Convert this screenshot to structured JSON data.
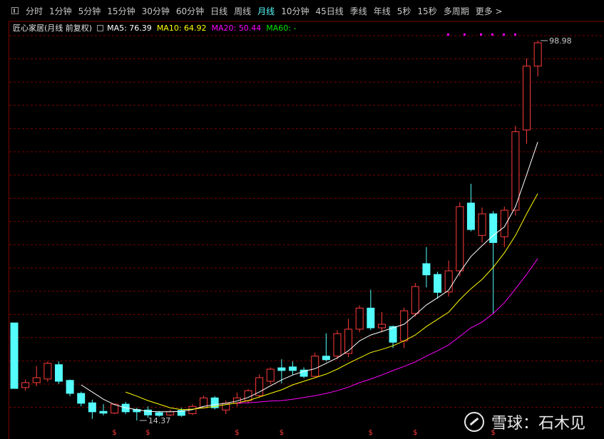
{
  "toolbar": {
    "items": [
      "分时",
      "1分钟",
      "5分钟",
      "15分钟",
      "30分钟",
      "60分钟",
      "日线",
      "周线",
      "月线",
      "10分钟",
      "45日线",
      "季线",
      "年线",
      "5秒",
      "15秒",
      "多周期",
      "更多 >"
    ],
    "active": 8
  },
  "chart_data": {
    "type": "candlestick",
    "title": "匠心家居(月线 前复权)",
    "ylim": [
      14.37,
      98.98
    ],
    "up_color": "#ff3b3b",
    "down_color": "#54fcfc",
    "open": [
      36.1,
      21.7,
      22.8,
      23.6,
      26.8,
      23.3,
      20.4,
      18.3,
      16.4,
      16.0,
      18.0,
      16.8,
      16.7,
      16.1,
      15.6,
      16.6,
      15.9,
      17.2,
      19.4,
      16.7,
      18.2,
      18.8,
      19.9,
      23.1,
      26.1,
      26.3,
      25.6,
      24.2,
      28.7,
      28.7,
      29.3,
      34.7,
      39.4,
      35.0,
      35.3,
      32.1,
      38.2,
      49.3,
      46.9,
      43.0,
      47.7,
      62.8,
      55.6,
      60.4,
      55.3,
      61.2,
      79.1,
      93.3
    ],
    "high": [
      36.1,
      23.5,
      26.5,
      27.5,
      27.5,
      23.5,
      20.8,
      19.0,
      18.0,
      18.2,
      18.5,
      17.2,
      17.5,
      16.5,
      16.8,
      17.2,
      18.0,
      19.9,
      19.8,
      18.8,
      20.6,
      21.4,
      24.6,
      26.2,
      28.0,
      27.5,
      26.2,
      29.5,
      33.8,
      34.5,
      37.0,
      40.0,
      43.5,
      38.5,
      35.5,
      39.5,
      45.0,
      53.0,
      47.5,
      50.0,
      63.0,
      67.1,
      61.8,
      61.0,
      62.0,
      80.0,
      95.0,
      98.98
    ],
    "low": [
      21.5,
      21.0,
      22.0,
      23.0,
      22.5,
      19.8,
      17.5,
      14.7,
      15.5,
      15.8,
      15.8,
      14.37,
      15.0,
      15.2,
      15.3,
      15.2,
      15.6,
      17.0,
      16.8,
      15.8,
      17.5,
      18.2,
      19.5,
      22.5,
      22.6,
      24.5,
      23.8,
      24.0,
      27.5,
      28.0,
      28.5,
      34.0,
      34.5,
      34.0,
      30.5,
      30.5,
      37.5,
      44.0,
      41.5,
      42.0,
      46.5,
      56.5,
      54.0,
      38.2,
      53.0,
      60.0,
      76.0,
      91.0
    ],
    "close": [
      21.5,
      22.8,
      23.9,
      27.1,
      23.1,
      20.4,
      18.2,
      16.3,
      16.0,
      18.0,
      16.3,
      16.3,
      15.6,
      15.5,
      16.3,
      15.5,
      17.5,
      19.4,
      17.2,
      18.2,
      19.4,
      21.0,
      23.9,
      25.8,
      25.5,
      25.5,
      24.2,
      28.7,
      27.9,
      33.7,
      34.7,
      39.4,
      35.0,
      35.8,
      31.8,
      38.8,
      44.2,
      46.8,
      42.9,
      47.7,
      62.0,
      56.9,
      60.4,
      54.0,
      61.2,
      78.7,
      93.3,
      98.5
    ],
    "series": [
      {
        "name": "MA5",
        "label": "MA5: 76.39",
        "color": "#ffffff",
        "values": [
          null,
          null,
          null,
          null,
          null,
          null,
          22.3,
          20.7,
          19.1,
          17.9,
          17.2,
          16.8,
          16.4,
          16.3,
          16.3,
          16.4,
          16.8,
          17.5,
          17.9,
          18.2,
          18.7,
          19.5,
          20.7,
          22.1,
          23.4,
          24.5,
          25.3,
          25.9,
          27.1,
          28.3,
          29.9,
          32.1,
          33.4,
          34.2,
          35.0,
          35.8,
          37.9,
          40.1,
          41.7,
          43.4,
          47.4,
          50.9,
          53.3,
          55.6,
          57.5,
          62.0,
          69.1,
          76.39
        ]
      },
      {
        "name": "MA10",
        "label": "MA10: 64.92",
        "color": "#ffff00",
        "values": [
          null,
          null,
          null,
          null,
          null,
          null,
          null,
          null,
          null,
          null,
          20.7,
          19.8,
          18.8,
          18.0,
          17.2,
          16.8,
          16.9,
          17.2,
          17.5,
          17.9,
          18.3,
          18.8,
          19.6,
          20.4,
          21.2,
          22.3,
          23.1,
          23.9,
          24.7,
          25.8,
          27.1,
          28.3,
          29.5,
          30.2,
          31.0,
          32.1,
          33.4,
          35.3,
          36.9,
          38.5,
          41.3,
          43.7,
          45.8,
          48.5,
          51.7,
          55.6,
          60.4,
          64.92
        ]
      },
      {
        "name": "MA20",
        "label": "MA20: 50.44",
        "color": "#ff00ff",
        "values": [
          null,
          null,
          null,
          null,
          null,
          null,
          null,
          null,
          null,
          null,
          null,
          null,
          null,
          null,
          null,
          null,
          null,
          null,
          null,
          null,
          18.3,
          18.3,
          18.5,
          18.7,
          18.8,
          19.1,
          19.5,
          19.9,
          20.4,
          21.0,
          21.8,
          22.8,
          23.6,
          24.5,
          25.5,
          26.4,
          27.4,
          28.7,
          29.9,
          31.2,
          33.1,
          35.0,
          36.3,
          38.2,
          40.6,
          43.7,
          46.9,
          50.44
        ]
      },
      {
        "name": "MA60",
        "label": "MA60: -",
        "color": "#00e600"
      }
    ],
    "annotations": [
      {
        "value": 98.98,
        "index": 47
      },
      {
        "value": 14.37,
        "index": 11
      }
    ],
    "dividend_marks": {
      "label": "$",
      "indices": [
        9,
        12,
        20,
        24,
        32,
        36,
        43
      ]
    }
  },
  "watermark": "雪球：石木见"
}
